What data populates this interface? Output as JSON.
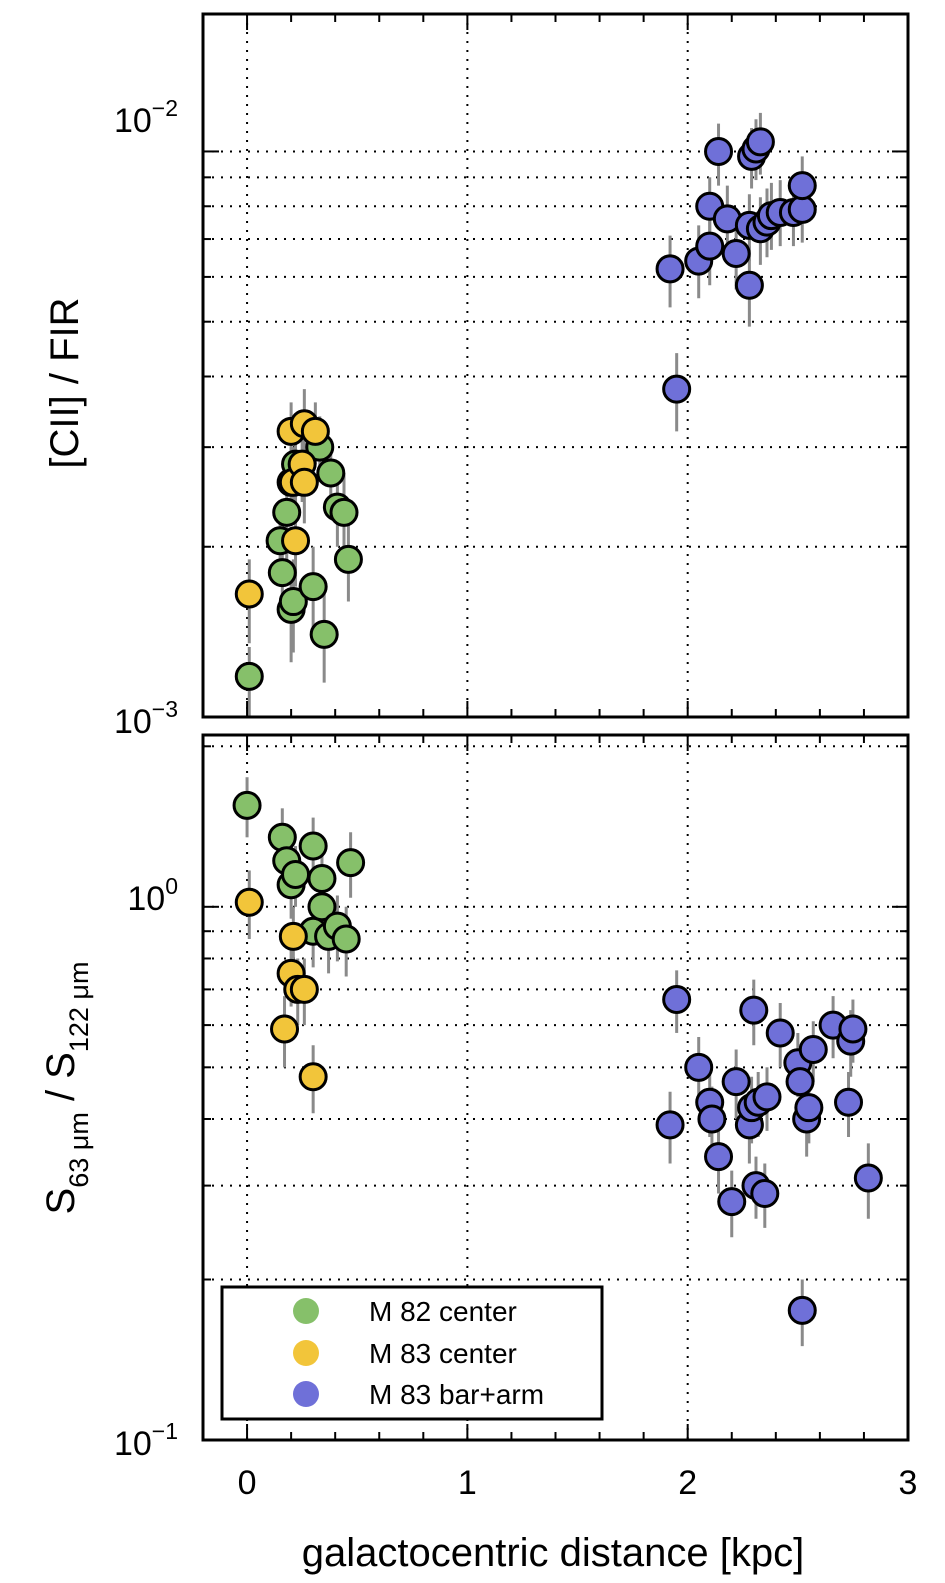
{
  "chart_data": [
    {
      "type": "scatter",
      "panel": "top",
      "ylabel": "[CII] / FIR",
      "yscale": "log",
      "ylim": [
        0.001,
        0.0175
      ],
      "xlim": [
        -0.2,
        3.0
      ],
      "ytick_labels": [
        {
          "base": "10",
          "exp": "−2",
          "value": 0.01
        },
        {
          "base": "10",
          "exp": "−3",
          "value": 0.001
        }
      ],
      "series": [
        {
          "name": "M 82 center",
          "color": "#86c06a",
          "points": [
            {
              "x": 0.01,
              "y": 0.00118,
              "err": [
                0.001,
                0.00133
              ]
            },
            {
              "x": 0.15,
              "y": 0.00205,
              "err": [
                0.00175,
                0.00235
              ]
            },
            {
              "x": 0.16,
              "y": 0.0018,
              "err": [
                0.00155,
                0.0021
              ]
            },
            {
              "x": 0.18,
              "y": 0.0023,
              "err": [
                0.0019,
                0.0027
              ]
            },
            {
              "x": 0.2,
              "y": 0.0026,
              "err": [
                0.0022,
                0.003
              ]
            },
            {
              "x": 0.2,
              "y": 0.00155,
              "err": [
                0.00125,
                0.00185
              ]
            },
            {
              "x": 0.21,
              "y": 0.0016,
              "err": [
                0.0013,
                0.0019
              ]
            },
            {
              "x": 0.22,
              "y": 0.0028,
              "err": [
                0.0024,
                0.0032
              ]
            },
            {
              "x": 0.3,
              "y": 0.0017,
              "err": [
                0.0014,
                0.002
              ]
            },
            {
              "x": 0.33,
              "y": 0.003,
              "err": [
                0.0026,
                0.0034
              ]
            },
            {
              "x": 0.35,
              "y": 0.0014,
              "err": [
                0.00115,
                0.00165
              ]
            },
            {
              "x": 0.38,
              "y": 0.0027,
              "err": [
                0.0023,
                0.0031
              ]
            },
            {
              "x": 0.41,
              "y": 0.00235,
              "err": [
                0.002,
                0.0027
              ]
            },
            {
              "x": 0.44,
              "y": 0.0023,
              "err": [
                0.0019,
                0.0027
              ]
            },
            {
              "x": 0.46,
              "y": 0.0019,
              "err": [
                0.0016,
                0.0022
              ]
            }
          ]
        },
        {
          "name": "M 83 center",
          "color": "#f2c53a",
          "points": [
            {
              "x": 0.01,
              "y": 0.00165,
              "err": [
                0.00135,
                0.0019
              ]
            },
            {
              "x": 0.2,
              "y": 0.0032,
              "err": [
                0.0028,
                0.0036
              ]
            },
            {
              "x": 0.21,
              "y": 0.0026,
              "err": [
                0.0022,
                0.003
              ]
            },
            {
              "x": 0.22,
              "y": 0.00205,
              "err": [
                0.0017,
                0.0024
              ]
            },
            {
              "x": 0.25,
              "y": 0.0028,
              "err": [
                0.0024,
                0.0032
              ]
            },
            {
              "x": 0.26,
              "y": 0.0026,
              "err": [
                0.0022,
                0.003
              ]
            },
            {
              "x": 0.26,
              "y": 0.0033,
              "err": [
                0.0029,
                0.0038
              ]
            },
            {
              "x": 0.31,
              "y": 0.0032,
              "err": [
                0.0028,
                0.0036
              ]
            }
          ]
        },
        {
          "name": "M 83 bar+arm",
          "color": "#6f70d8",
          "points": [
            {
              "x": 1.92,
              "y": 0.0062,
              "err": [
                0.0053,
                0.0071
              ]
            },
            {
              "x": 1.95,
              "y": 0.0038,
              "err": [
                0.0032,
                0.0044
              ]
            },
            {
              "x": 2.05,
              "y": 0.0064,
              "err": [
                0.0055,
                0.0074
              ]
            },
            {
              "x": 2.1,
              "y": 0.0068,
              "err": [
                0.0058,
                0.0079
              ]
            },
            {
              "x": 2.1,
              "y": 0.008,
              "err": [
                0.007,
                0.009
              ]
            },
            {
              "x": 2.14,
              "y": 0.01,
              "err": [
                0.0087,
                0.0112
              ]
            },
            {
              "x": 2.18,
              "y": 0.0076,
              "err": [
                0.0066,
                0.0087
              ]
            },
            {
              "x": 2.22,
              "y": 0.0066,
              "err": [
                0.0057,
                0.0076
              ]
            },
            {
              "x": 2.28,
              "y": 0.0058,
              "err": [
                0.0049,
                0.0068
              ]
            },
            {
              "x": 2.28,
              "y": 0.0074,
              "err": [
                0.0064,
                0.0084
              ]
            },
            {
              "x": 2.29,
              "y": 0.0098,
              "err": [
                0.0086,
                0.011
              ]
            },
            {
              "x": 2.31,
              "y": 0.0101,
              "err": [
                0.0089,
                0.0114
              ]
            },
            {
              "x": 2.33,
              "y": 0.0104,
              "err": [
                0.0091,
                0.0117
              ]
            },
            {
              "x": 2.33,
              "y": 0.0073,
              "err": [
                0.0063,
                0.0083
              ]
            },
            {
              "x": 2.36,
              "y": 0.0075,
              "err": [
                0.0065,
                0.0086
              ]
            },
            {
              "x": 2.38,
              "y": 0.0077,
              "err": [
                0.0067,
                0.0088
              ]
            },
            {
              "x": 2.42,
              "y": 0.0078,
              "err": [
                0.0068,
                0.0089
              ]
            },
            {
              "x": 2.48,
              "y": 0.0078,
              "err": [
                0.0068,
                0.0089
              ]
            },
            {
              "x": 2.52,
              "y": 0.0079,
              "err": [
                0.0069,
                0.009
              ]
            },
            {
              "x": 2.52,
              "y": 0.0087,
              "err": [
                0.0076,
                0.0098
              ]
            }
          ]
        }
      ]
    },
    {
      "type": "scatter",
      "panel": "bottom",
      "xlabel": "galactocentric distance [kpc]",
      "ylabel_parts": {
        "S1": "S",
        "sub1": "63 μm",
        "slash": " / ",
        "S2": "S",
        "sub2": "122 μm"
      },
      "yscale": "log",
      "ylim": [
        0.1,
        2.1
      ],
      "xlim": [
        -0.2,
        3.0
      ],
      "xticks": [
        "0",
        "1",
        "2",
        "3"
      ],
      "ytick_labels": [
        {
          "base": "10",
          "exp": "0",
          "value": 1.0
        },
        {
          "base": "10",
          "exp": "−1",
          "value": 0.1
        }
      ],
      "legend": {
        "location": "bottom-left",
        "entries": [
          {
            "label": "M 82 center",
            "color": "#86c06a"
          },
          {
            "label": "M 83 center",
            "color": "#f2c53a"
          },
          {
            "label": "M 83 bar+arm",
            "color": "#6f70d8"
          }
        ]
      },
      "series": [
        {
          "name": "M 82 center",
          "color": "#86c06a",
          "points": [
            {
              "x": 0.0,
              "y": 1.55,
              "err": [
                1.35,
                1.75
              ]
            },
            {
              "x": 0.16,
              "y": 1.35,
              "err": [
                1.17,
                1.53
              ]
            },
            {
              "x": 0.18,
              "y": 1.22,
              "err": [
                1.05,
                1.39
              ]
            },
            {
              "x": 0.2,
              "y": 1.1,
              "err": [
                0.95,
                1.25
              ]
            },
            {
              "x": 0.22,
              "y": 1.15,
              "err": [
                1.0,
                1.3
              ]
            },
            {
              "x": 0.3,
              "y": 1.3,
              "err": [
                1.13,
                1.47
              ]
            },
            {
              "x": 0.3,
              "y": 0.9,
              "err": [
                0.77,
                1.03
              ]
            },
            {
              "x": 0.34,
              "y": 1.13,
              "err": [
                0.97,
                1.29
              ]
            },
            {
              "x": 0.34,
              "y": 1.0,
              "err": [
                0.87,
                1.13
              ]
            },
            {
              "x": 0.37,
              "y": 0.88,
              "err": [
                0.75,
                1.01
              ]
            },
            {
              "x": 0.41,
              "y": 0.92,
              "err": [
                0.79,
                1.05
              ]
            },
            {
              "x": 0.45,
              "y": 0.87,
              "err": [
                0.74,
                1.0
              ]
            },
            {
              "x": 0.47,
              "y": 1.21,
              "err": [
                1.04,
                1.38
              ]
            }
          ]
        },
        {
          "name": "M 83 center",
          "color": "#f2c53a",
          "points": [
            {
              "x": 0.01,
              "y": 1.02,
              "err": [
                0.87,
                1.17
              ]
            },
            {
              "x": 0.17,
              "y": 0.59,
              "err": [
                0.5,
                0.68
              ]
            },
            {
              "x": 0.2,
              "y": 0.75,
              "err": [
                0.65,
                0.85
              ]
            },
            {
              "x": 0.21,
              "y": 0.88,
              "err": [
                0.76,
                1.0
              ]
            },
            {
              "x": 0.23,
              "y": 0.7,
              "err": [
                0.6,
                0.8
              ]
            },
            {
              "x": 0.26,
              "y": 0.7,
              "err": [
                0.6,
                0.8
              ]
            },
            {
              "x": 0.3,
              "y": 0.48,
              "err": [
                0.41,
                0.55
              ]
            }
          ]
        },
        {
          "name": "M 83 bar+arm",
          "color": "#6f70d8",
          "points": [
            {
              "x": 1.92,
              "y": 0.39,
              "err": [
                0.33,
                0.45
              ]
            },
            {
              "x": 1.95,
              "y": 0.67,
              "err": [
                0.58,
                0.76
              ]
            },
            {
              "x": 2.05,
              "y": 0.5,
              "err": [
                0.43,
                0.57
              ]
            },
            {
              "x": 2.1,
              "y": 0.43,
              "err": [
                0.37,
                0.49
              ]
            },
            {
              "x": 2.11,
              "y": 0.4,
              "err": [
                0.34,
                0.46
              ]
            },
            {
              "x": 2.14,
              "y": 0.34,
              "err": [
                0.29,
                0.39
              ]
            },
            {
              "x": 2.2,
              "y": 0.28,
              "err": [
                0.24,
                0.32
              ]
            },
            {
              "x": 2.22,
              "y": 0.47,
              "err": [
                0.4,
                0.54
              ]
            },
            {
              "x": 2.28,
              "y": 0.39,
              "err": [
                0.33,
                0.45
              ]
            },
            {
              "x": 2.29,
              "y": 0.42,
              "err": [
                0.36,
                0.48
              ]
            },
            {
              "x": 2.3,
              "y": 0.64,
              "err": [
                0.55,
                0.73
              ]
            },
            {
              "x": 2.31,
              "y": 0.3,
              "err": [
                0.26,
                0.34
              ]
            },
            {
              "x": 2.32,
              "y": 0.43,
              "err": [
                0.37,
                0.49
              ]
            },
            {
              "x": 2.35,
              "y": 0.29,
              "err": [
                0.25,
                0.33
              ]
            },
            {
              "x": 2.36,
              "y": 0.44,
              "err": [
                0.38,
                0.5
              ]
            },
            {
              "x": 2.42,
              "y": 0.58,
              "err": [
                0.5,
                0.66
              ]
            },
            {
              "x": 2.5,
              "y": 0.51,
              "err": [
                0.44,
                0.58
              ]
            },
            {
              "x": 2.51,
              "y": 0.47,
              "err": [
                0.41,
                0.53
              ]
            },
            {
              "x": 2.52,
              "y": 0.175,
              "err": [
                0.15,
                0.2
              ]
            },
            {
              "x": 2.54,
              "y": 0.4,
              "err": [
                0.34,
                0.46
              ]
            },
            {
              "x": 2.55,
              "y": 0.42,
              "err": [
                0.36,
                0.48
              ]
            },
            {
              "x": 2.57,
              "y": 0.54,
              "err": [
                0.47,
                0.61
              ]
            },
            {
              "x": 2.66,
              "y": 0.6,
              "err": [
                0.52,
                0.68
              ]
            },
            {
              "x": 2.73,
              "y": 0.43,
              "err": [
                0.37,
                0.49
              ]
            },
            {
              "x": 2.74,
              "y": 0.56,
              "err": [
                0.48,
                0.64
              ]
            },
            {
              "x": 2.75,
              "y": 0.59,
              "err": [
                0.51,
                0.67
              ]
            },
            {
              "x": 2.82,
              "y": 0.31,
              "err": [
                0.26,
                0.36
              ]
            }
          ]
        }
      ]
    }
  ]
}
